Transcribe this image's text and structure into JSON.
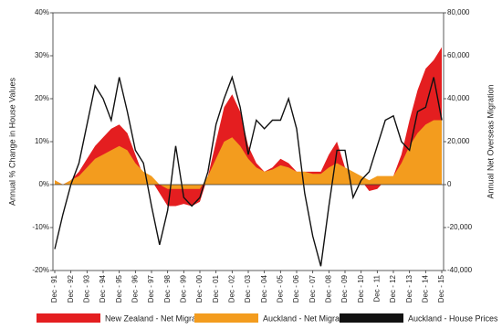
{
  "chart_data": {
    "type": "combo",
    "y_label": "Annual % Change in House Values",
    "y2_label": "Annual Net Overseas Migration",
    "categories": [
      "Dec - 91",
      null,
      "Dec - 92",
      null,
      "Dec - 93",
      null,
      "Dec - 94",
      null,
      "Dec - 95",
      null,
      "Dec - 96",
      null,
      "Dec - 97",
      null,
      "Dec - 98",
      null,
      "Dec - 99",
      null,
      "Dec - 00",
      null,
      "Dec - 01",
      null,
      "Dec - 02",
      null,
      "Dec - 03",
      null,
      "Dec - 04",
      null,
      "Dec - 05",
      null,
      "Dec - 06",
      null,
      "Dec - 07",
      null,
      "Dec - 08",
      null,
      "Dec - 09",
      null,
      "Dec - 10",
      null,
      "Dec - 11",
      null,
      "Dec - 12",
      null,
      "Dec - 13",
      null,
      "Dec - 14",
      null,
      "Dec - 15"
    ],
    "ylim": [
      -20,
      40
    ],
    "yticks": [
      {
        "value": -20,
        "label": "-20%"
      },
      {
        "value": -10,
        "label": "-10%"
      },
      {
        "value": 0,
        "label": "0%"
      },
      {
        "value": 10,
        "label": "10%"
      },
      {
        "value": 20,
        "label": "20%"
      },
      {
        "value": 30,
        "label": "30%"
      },
      {
        "value": 40,
        "label": "40%"
      }
    ],
    "y2lim": [
      -40000,
      80000
    ],
    "y2ticks": [
      {
        "value": -40000,
        "label": "-40,000"
      },
      {
        "value": -20000,
        "label": "-20,000"
      },
      0,
      {
        "value": 20000,
        "label": "20,000"
      },
      {
        "value": 40000,
        "label": "40,000"
      },
      {
        "value": 60000,
        "label": "60,000"
      },
      {
        "value": 80000,
        "label": "80,000"
      }
    ],
    "series": [
      {
        "name": "New Zealand - Net Migration",
        "type": "area",
        "axis": "y2",
        "color": "#e41e20",
        "values": [
          2000,
          0,
          2000,
          6000,
          12000,
          18000,
          22000,
          26000,
          28000,
          24000,
          14000,
          4000,
          2000,
          -4000,
          -10000,
          -10000,
          -9000,
          -10000,
          -8000,
          4000,
          20000,
          36000,
          42000,
          34000,
          18000,
          10000,
          6000,
          8000,
          12000,
          10000,
          6000,
          6000,
          6000,
          6000,
          14000,
          20000,
          8000,
          4000,
          2000,
          -3000,
          -2000,
          2000,
          4000,
          14000,
          30000,
          44000,
          54000,
          58000,
          64000
        ]
      },
      {
        "name": "Auckland - Net Migration",
        "type": "area",
        "axis": "y2",
        "color": "#f39c1e",
        "values": [
          2000,
          0,
          2000,
          4000,
          8000,
          12000,
          14000,
          16000,
          18000,
          16000,
          10000,
          6000,
          4000,
          0,
          -2000,
          -2000,
          -2000,
          -2000,
          -2000,
          4000,
          12000,
          20000,
          22000,
          18000,
          12000,
          8000,
          6000,
          7000,
          9000,
          8000,
          6000,
          6000,
          5000,
          5000,
          8000,
          10000,
          8000,
          6000,
          4000,
          2000,
          4000,
          4000,
          4000,
          10000,
          18000,
          24000,
          28000,
          30000,
          30000
        ]
      },
      {
        "name": "Auckland - House Prices",
        "type": "line",
        "axis": "y",
        "color": "#111111",
        "values": [
          -15,
          -7,
          0,
          5,
          14,
          23,
          20,
          15,
          25,
          17,
          8,
          5,
          -5,
          -14,
          -6,
          9,
          -3,
          -5,
          -3,
          3,
          14,
          20,
          25,
          18,
          7,
          15,
          13,
          15,
          15,
          20,
          13,
          -2,
          -12,
          -19,
          -5,
          8,
          8,
          -3,
          1,
          3,
          9,
          15,
          16,
          10,
          8,
          17,
          18,
          25,
          15
        ]
      }
    ]
  }
}
